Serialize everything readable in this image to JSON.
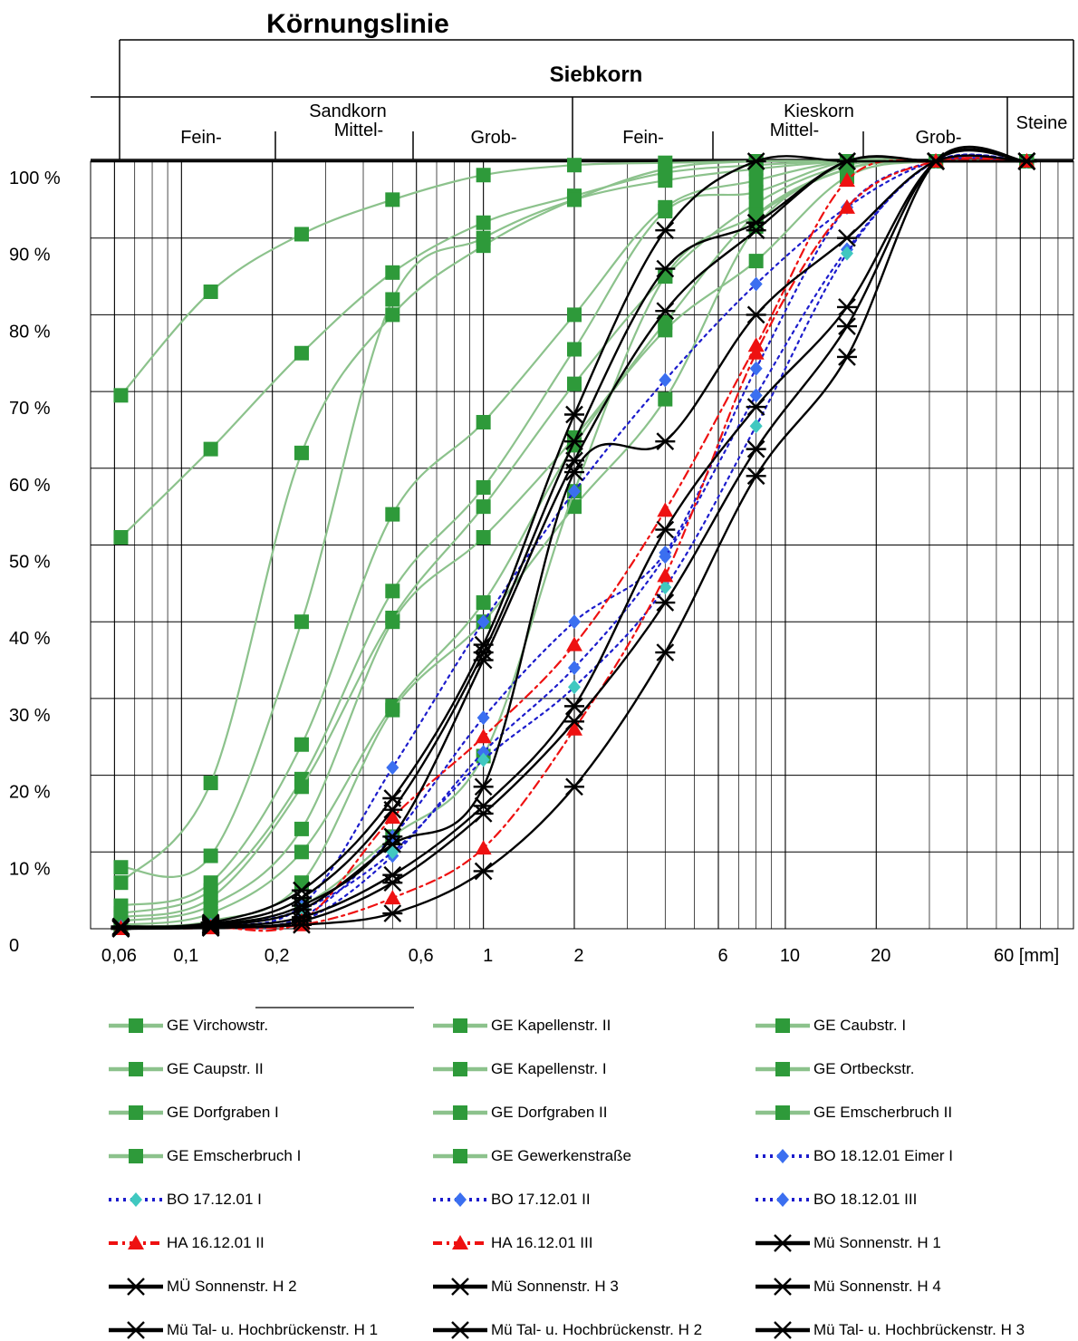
{
  "title": "Körnungslinie",
  "header": {
    "top": "Siebkorn",
    "sand": "Sandkorn",
    "kies": "Kieskorn",
    "steine": "Steine",
    "sub_sand": [
      "Fein-",
      "Mittel-",
      "Grob-"
    ],
    "sub_kies": [
      "Fein-",
      "Mittel-",
      "Grob-"
    ]
  },
  "colors": {
    "green": "#8cc28c",
    "green_marker": "#2e9a3a",
    "blue_line": "#1c1ccc",
    "blue_marker": "#3b6ff0",
    "red": "#ee1111",
    "black": "#000000",
    "lilac": "#c8a0dc",
    "turquoise": "#40c8c0"
  },
  "chart_data": {
    "type": "line",
    "x_scale": "log",
    "xlim": [
      0.05,
      90
    ],
    "ylim": [
      0,
      100
    ],
    "grid": true,
    "xlabel": "",
    "ylabel": "",
    "x_ticks": [
      {
        "v": 0.06,
        "label": "0,06"
      },
      {
        "v": 0.1,
        "label": "0,1"
      },
      {
        "v": 0.2,
        "label": "0,2"
      },
      {
        "v": 0.6,
        "label": "0,6"
      },
      {
        "v": 1,
        "label": "1"
      },
      {
        "v": 2,
        "label": "2"
      },
      {
        "v": 6,
        "label": "6"
      },
      {
        "v": 10,
        "label": "10"
      },
      {
        "v": 20,
        "label": "20"
      },
      {
        "v": 60,
        "label": "60 [mm]"
      }
    ],
    "y_ticks": [
      {
        "v": 0,
        "label": "0"
      },
      {
        "v": 10,
        "label": "10 %"
      },
      {
        "v": 20,
        "label": "20 %"
      },
      {
        "v": 30,
        "label": "30 %"
      },
      {
        "v": 40,
        "label": "40 %"
      },
      {
        "v": 50,
        "label": "50 %"
      },
      {
        "v": 60,
        "label": "60 %"
      },
      {
        "v": 70,
        "label": "70 %"
      },
      {
        "v": 80,
        "label": "80 %"
      },
      {
        "v": 90,
        "label": "90 %"
      },
      {
        "v": 100,
        "label": "100 %"
      }
    ],
    "x": [
      0.063,
      0.125,
      0.25,
      0.5,
      1,
      2,
      4,
      8,
      16,
      31.5,
      63
    ],
    "series": [
      {
        "name": "GE Virchowstr.",
        "group": "green",
        "values": [
          69.5,
          83,
          90.5,
          95,
          98.2,
          99.5,
          99.8,
          100,
          100,
          100,
          100
        ]
      },
      {
        "name": "GE Kapellenstr. II",
        "group": "green",
        "values": [
          51,
          62.5,
          75,
          85.5,
          92,
          95.5,
          98.5,
          99.5,
          100,
          100,
          100
        ]
      },
      {
        "name": "GE Caubstr. I",
        "group": "green",
        "values": [
          8,
          9.5,
          40,
          82,
          90,
          95,
          97.5,
          99,
          100,
          100,
          100
        ]
      },
      {
        "name": "GE Caupstr. II",
        "group": "green",
        "values": [
          6,
          19,
          62,
          80,
          89,
          95,
          99,
          100,
          100,
          100,
          100
        ]
      },
      {
        "name": "GE Kapellenstr. I",
        "group": "green",
        "values": [
          3,
          6,
          24,
          54,
          66,
          80,
          94,
          97.5,
          100,
          100,
          100
        ]
      },
      {
        "name": "GE Ortbeckstr.",
        "group": "green",
        "values": [
          2,
          5,
          19.5,
          44,
          57.5,
          75.5,
          93.5,
          96,
          100,
          100,
          100
        ]
      },
      {
        "name": "GE Dorfgraben I",
        "group": "green",
        "values": [
          1.5,
          4,
          18.5,
          40.5,
          55,
          71,
          85,
          94.5,
          99.5,
          100,
          100
        ]
      },
      {
        "name": "GE Dorfgraben II",
        "group": "green",
        "values": [
          1,
          3,
          13,
          40,
          51,
          64,
          79,
          93,
          99,
          100,
          100
        ]
      },
      {
        "name": "GE Emscherbruch II",
        "group": "green",
        "values": [
          0.5,
          2,
          10,
          29,
          42.5,
          63,
          78,
          87,
          98,
          100,
          100
        ]
      },
      {
        "name": "GE Emscherbruch I",
        "group": "green",
        "values": [
          0.3,
          1,
          6,
          28.5,
          40,
          55,
          69,
          91.5,
          99,
          100,
          100
        ]
      },
      {
        "name": "GE Gewerkenstraße",
        "group": "green",
        "values": [
          0.2,
          0.5,
          3,
          12,
          22.5,
          57,
          85,
          93,
          99.5,
          100,
          100
        ]
      },
      {
        "name": "BO 18.12.01 Eimer I",
        "group": "blue",
        "values": [
          0.3,
          0.5,
          3,
          21,
          40,
          57,
          71.5,
          84,
          94,
          100,
          100
        ]
      },
      {
        "name": "BO 17.12.01 I",
        "group": "blue_light",
        "values": [
          0.2,
          0.4,
          2.5,
          10,
          22,
          31.5,
          44.5,
          65.5,
          88,
          100,
          100
        ]
      },
      {
        "name": "BO 17.12.01 II",
        "group": "blue",
        "values": [
          0.1,
          0.3,
          1.5,
          12,
          27.5,
          40,
          49,
          73,
          94,
          100,
          100
        ]
      },
      {
        "name": "BO 18.12.01 III",
        "group": "blue",
        "values": [
          0.1,
          0.2,
          1,
          9.5,
          23,
          34,
          48.5,
          69.5,
          88.5,
          100,
          100
        ]
      },
      {
        "name": "HA 16.12.01 II",
        "group": "red",
        "values": [
          0.1,
          0.2,
          1,
          14.5,
          25,
          37,
          54.5,
          76,
          97.5,
          100,
          100
        ]
      },
      {
        "name": "HA 16.12.01 III",
        "group": "red",
        "values": [
          0,
          0.1,
          0.5,
          4,
          10.5,
          26,
          46,
          75,
          94,
          100,
          100
        ]
      },
      {
        "name": "Mü Sonnenstr. H 1",
        "group": "black",
        "values": [
          0.3,
          0.8,
          5,
          17,
          37,
          67,
          91,
          100,
          100,
          100,
          100
        ]
      },
      {
        "name": "MÜ Sonnenstr. H 2",
        "group": "black",
        "values": [
          0.2,
          0.6,
          4,
          15.5,
          36,
          63.5,
          86,
          92,
          100,
          100,
          100
        ]
      },
      {
        "name": "Mü Sonnenstr. H 3",
        "group": "black",
        "values": [
          0.2,
          0.5,
          3,
          12,
          35,
          61,
          80.5,
          91,
          100,
          100,
          100
        ]
      },
      {
        "name": "Mü Sonnenstr. H 4",
        "group": "black",
        "values": [
          0.1,
          0.4,
          2.5,
          11,
          18.5,
          59.5,
          63.5,
          80,
          90,
          100,
          100
        ]
      },
      {
        "name": "Mü Tal- u. Hochbrückenstr. H 1",
        "group": "black",
        "values": [
          0.1,
          0.3,
          1.5,
          7,
          16,
          29,
          52,
          68,
          81,
          100,
          100
        ]
      },
      {
        "name": "Mü Tal- u. Hochbrückenstr. H 2",
        "group": "black",
        "values": [
          0,
          0.2,
          1,
          6,
          15,
          27,
          42.5,
          62.5,
          78.5,
          100,
          100
        ]
      },
      {
        "name": "Mü Tal- u. Hochbrückenstr. H 3",
        "group": "black",
        "values": [
          0,
          0.1,
          0.5,
          2,
          7.5,
          18.5,
          36,
          59,
          74.5,
          100,
          100
        ]
      }
    ]
  }
}
